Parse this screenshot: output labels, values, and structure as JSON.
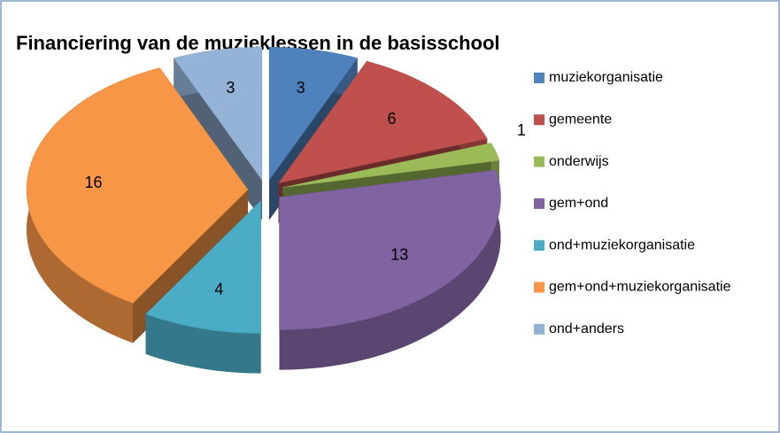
{
  "chart_data": {
    "type": "pie",
    "title": "Financiering van de muzieklessen in de basisschool",
    "categories": [
      "muziekorganisatie",
      "gemeente",
      "onderwijs",
      "gem+ond",
      "ond+muziekorganisatie",
      "gem+ond+muziekorganisatie",
      "ond+anders"
    ],
    "values": [
      3,
      6,
      1,
      13,
      4,
      16,
      3
    ],
    "colors": [
      "#4f81bd",
      "#c0504d",
      "#9bbb59",
      "#8064a2",
      "#4bacc6",
      "#f79646",
      "#95b3d7"
    ],
    "legend": "right"
  }
}
